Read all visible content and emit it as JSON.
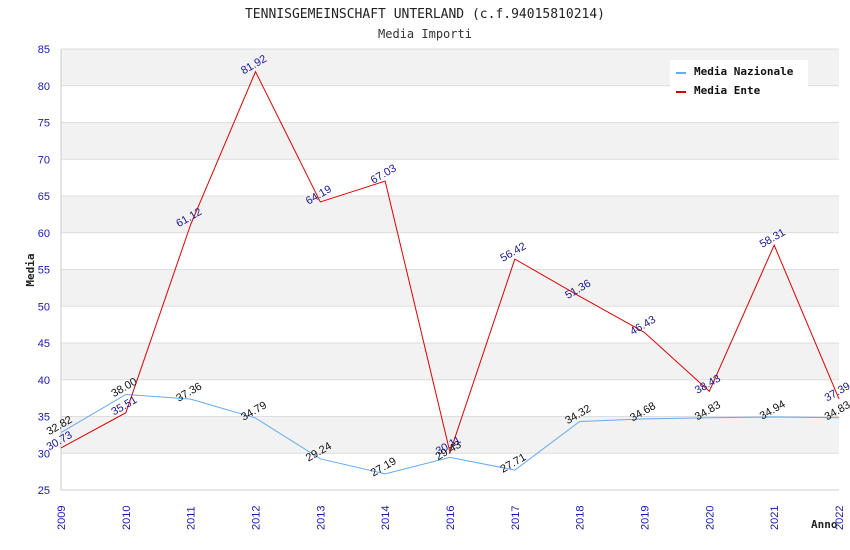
{
  "chart_data": {
    "type": "line",
    "title": "TENNISGEMEINSCHAFT UNTERLAND (c.f.94015810214)",
    "subtitle": "Media Importi",
    "xlabel": "Anno",
    "ylabel": "Media",
    "ylim": [
      25,
      85
    ],
    "yticks": [
      "25",
      "30",
      "35",
      "40",
      "45",
      "50",
      "55",
      "60",
      "65",
      "70",
      "75",
      "80",
      "85"
    ],
    "categories": [
      "2009",
      "2010",
      "2011",
      "2012",
      "2013",
      "2014",
      "2016",
      "2017",
      "2018",
      "2019",
      "2020",
      "2021",
      "2022"
    ],
    "grid": "horizontal bands",
    "legend_position": "top-right",
    "series": [
      {
        "name": "Media Nazionale",
        "color": "#66aaee",
        "values": [
          32.82,
          38.0,
          37.36,
          34.79,
          29.24,
          27.19,
          29.43,
          27.71,
          34.32,
          34.68,
          34.83,
          34.94,
          34.83
        ],
        "labels": [
          "32.82",
          "38.00",
          "37.36",
          "34.79",
          "29.24",
          "27.19",
          "29.43",
          "27.71",
          "34.32",
          "34.68",
          "34.83",
          "34.94",
          "34.83"
        ]
      },
      {
        "name": "Media Ente",
        "color": "#dd0000",
        "values": [
          30.73,
          35.51,
          61.12,
          81.92,
          64.19,
          67.03,
          30.11,
          56.42,
          51.36,
          46.43,
          38.43,
          58.31,
          37.39
        ],
        "labels": [
          "30.73",
          "35.51",
          "61.12",
          "81.92",
          "64.19",
          "67.03",
          "30.11",
          "56.42",
          "51.36",
          "46.43",
          "38.43",
          "58.31",
          "37.39"
        ]
      }
    ]
  }
}
